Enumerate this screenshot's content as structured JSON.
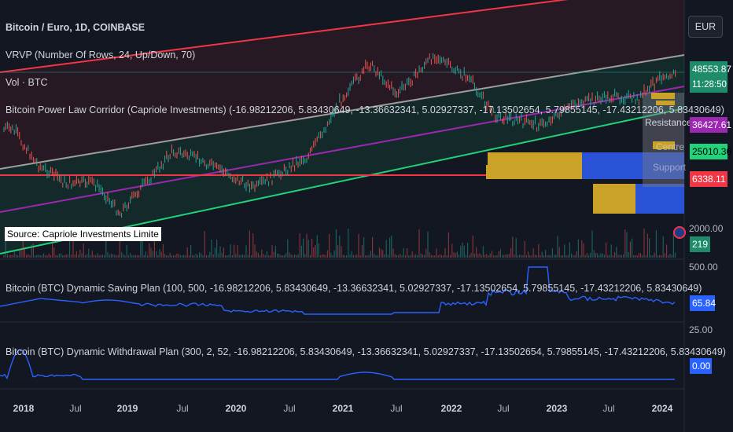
{
  "header": {
    "title": "Bitcoin / Euro, 1D, COINBASE",
    "vrvp": "VRVP (Number Of Rows, 24, Up/Down, 70)",
    "vol": "Vol · BTC",
    "indicator": "Bitcoin Power Law Corridor (Capriole Investments) (-16.98212206, 5.83430649, -13.36632341, 5.02927337, -17.13502654, 5.79855145, -17.43212206, 5.83430649)"
  },
  "currency": "EUR",
  "price_tags": {
    "upper": "48553.87",
    "countdown": "11:28:50",
    "resistance": "36427.61",
    "centre": "25010.36",
    "support": "6338.11",
    "volume": "219"
  },
  "corridor_labels": {
    "resistance": "Resistance",
    "centre": "Centre",
    "support": "Support"
  },
  "source_label": "Source: Capriole Investments Limite",
  "panes": {
    "saving": {
      "label": "Bitcoin (BTC) Dynamic Saving Plan (100, 500, -16.98212206, 5.83430649, -13.36632341, 5.02927337, -17.13502654, 5.79855145, -17.43212206, 5.83430649)",
      "value_tag": "65.84",
      "scale_top": "500.00"
    },
    "withdrawal": {
      "label": "Bitcoin (BTC) Dynamic Withdrawal Plan (300, 2, 52, -16.98212206, 5.83430649, -13.36632341, 5.02927337, -17.13502654, 5.79855145, -17.43212206, 5.83430649)",
      "value_tag": "0.00",
      "scale_top": "25.00"
    },
    "volume": {
      "scale_top": "2000.00"
    }
  },
  "x_axis": [
    {
      "label": "2018",
      "year": true
    },
    {
      "label": "Jul",
      "year": false
    },
    {
      "label": "2019",
      "year": true
    },
    {
      "label": "Jul",
      "year": false
    },
    {
      "label": "2020",
      "year": true
    },
    {
      "label": "Jul",
      "year": false
    },
    {
      "label": "2021",
      "year": true
    },
    {
      "label": "Jul",
      "year": false
    },
    {
      "label": "2022",
      "year": true
    },
    {
      "label": "Jul",
      "year": false
    },
    {
      "label": "2023",
      "year": true
    },
    {
      "label": "Jul",
      "year": false
    },
    {
      "label": "2024",
      "year": true
    }
  ],
  "colors": {
    "background": "#131722",
    "resistance_line": "#f23645",
    "centre_line": "#9e9e9e",
    "purple_line": "#9c27b0",
    "support_line": "#22d37a",
    "horizontal_line": "#f23645",
    "up_candle": "#26a69a",
    "down_candle": "#ef5350",
    "saving_line": "#2962ff",
    "vp_gold": "#c9a227",
    "vp_blue": "#2a52d6"
  },
  "chart_data": {
    "type": "line",
    "title": "Bitcoin / Euro, 1D, COINBASE",
    "x_range": [
      "2017-11",
      "2024-02"
    ],
    "series": [
      {
        "name": "Bitcoin / Euro",
        "x": [
          "2017-12",
          "2018-03",
          "2018-06",
          "2018-09",
          "2018-12",
          "2019-06",
          "2019-09",
          "2020-03",
          "2020-09",
          "2021-01",
          "2021-04",
          "2021-07",
          "2021-11",
          "2022-03",
          "2022-06",
          "2022-11",
          "2023-03",
          "2023-07",
          "2023-10",
          "2024-01"
        ],
        "values": [
          15000,
          7500,
          5500,
          5600,
          3200,
          10000,
          8500,
          5000,
          9000,
          28000,
          50000,
          28000,
          58000,
          38000,
          19000,
          16000,
          24000,
          27000,
          26000,
          42000
        ]
      },
      {
        "name": "Resistance",
        "value_last": 36427.61
      },
      {
        "name": "Centre",
        "value_last": 25010.36
      },
      {
        "name": "Support",
        "value_last": 6338.11
      },
      {
        "name": "Bitcoin (BTC) Dynamic Saving Plan",
        "values_last": 65.84,
        "peak": 500
      },
      {
        "name": "Bitcoin (BTC) Dynamic Withdrawal Plan",
        "values_last": 0.0,
        "peak": 25
      }
    ]
  }
}
